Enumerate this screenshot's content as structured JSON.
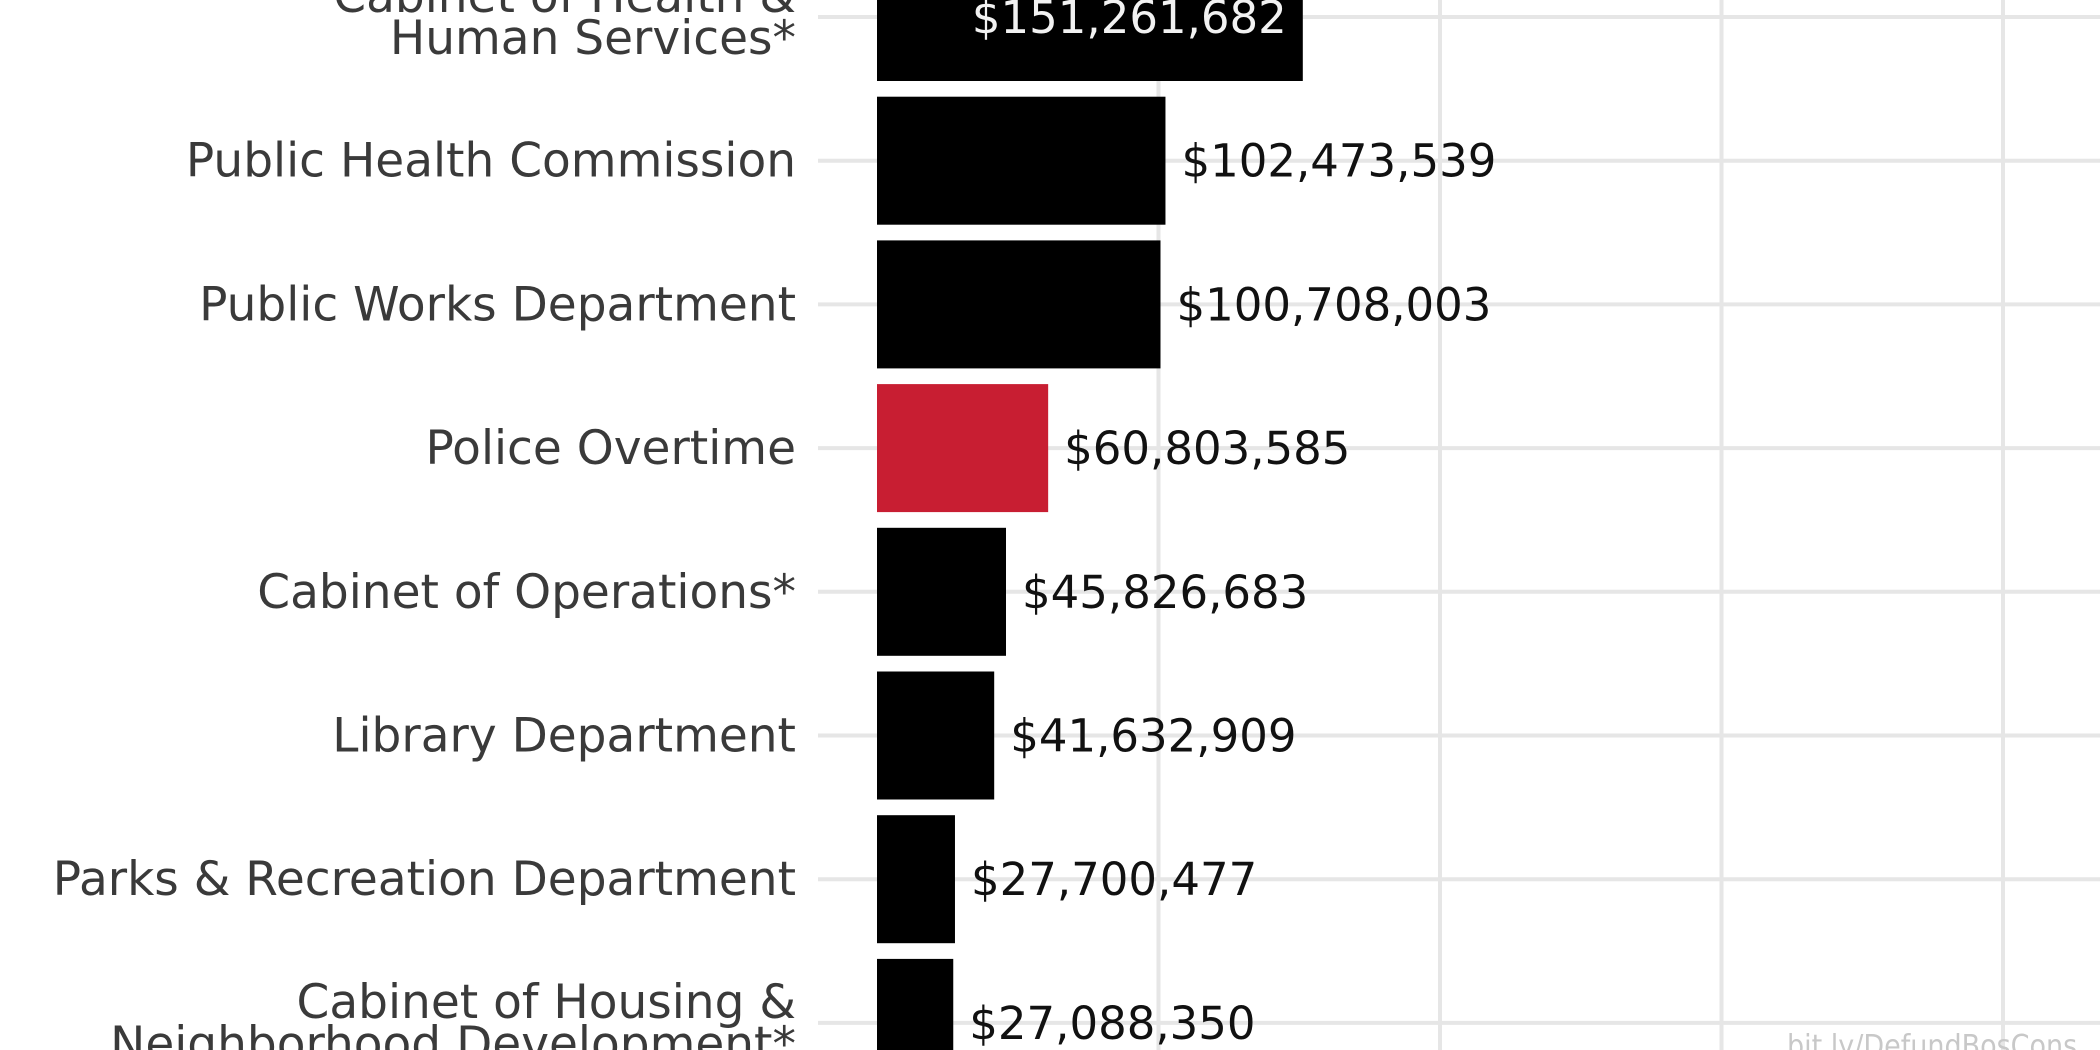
{
  "chart_data": {
    "type": "bar",
    "orientation": "horizontal",
    "categories": [
      [
        "Cabinet of Health &",
        "Human Services*"
      ],
      [
        "Public Health Commission"
      ],
      [
        "Public Works Department"
      ],
      [
        "Police Overtime"
      ],
      [
        "Cabinet of Operations*"
      ],
      [
        "Library Department"
      ],
      [
        "Parks & Recreation Department"
      ],
      [
        "Cabinet of Housing &",
        "Neighborhood Development*"
      ]
    ],
    "values": [
      151261682,
      102473539,
      100708003,
      60803585,
      45826683,
      41632909,
      27700477,
      27088350
    ],
    "value_labels": [
      "$151,261,682",
      "$102,473,539",
      "$100,708,003",
      "$60,803,585",
      "$45,826,683",
      "$41,632,909",
      "$27,700,477",
      "$27,088,350"
    ],
    "highlight_index": 3,
    "colors": {
      "bar": "#000000",
      "highlight": "#c81e32",
      "grid": "#e6e6e6"
    },
    "xlim": [
      0,
      400000000
    ],
    "x_gridlines": [
      100000000,
      200000000,
      300000000,
      400000000
    ],
    "grid": true,
    "legend": "none",
    "source_text": "bit.ly/DefundBosCons"
  }
}
